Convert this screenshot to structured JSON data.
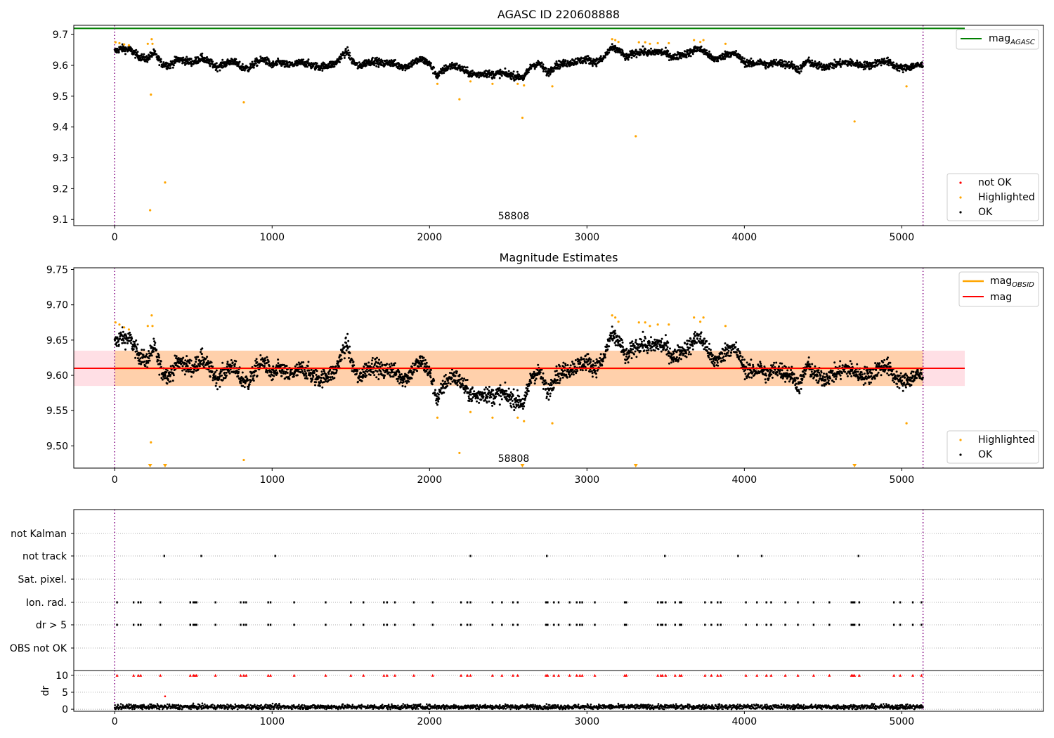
{
  "chart_data": [
    {
      "type": "scatter",
      "title": "AGASC ID 220608888",
      "xlim": [
        -260,
        5900
      ],
      "ylim": [
        9.08,
        9.73
      ],
      "x_ticks": [
        0,
        1000,
        2000,
        3000,
        4000,
        5000
      ],
      "y_ticks": [
        9.1,
        9.2,
        9.3,
        9.4,
        9.5,
        9.6,
        9.7
      ],
      "y_tick_labels": [
        "9.1",
        "9.2",
        "9.3",
        "9.4",
        "9.5",
        "9.6",
        "9.7"
      ],
      "obsid_lines_x": [
        0,
        5135
      ],
      "obsid_label": "58808",
      "hline": {
        "name": "mag",
        "subscript": "AGASC",
        "value": 9.72,
        "color": "#008000",
        "x_range": [
          -260,
          5400
        ]
      },
      "legends": {
        "top_right": [
          {
            "name": "mag",
            "subscript": "AGASC",
            "marker": "line",
            "color": "#008000"
          }
        ],
        "bottom_right": [
          {
            "name": "not OK",
            "marker": "dot",
            "color": "#ff0000"
          },
          {
            "name": "Highlighted",
            "marker": "dot",
            "color": "#ffa500"
          },
          {
            "name": "OK",
            "marker": "dot",
            "color": "#000000"
          }
        ]
      },
      "series": [
        {
          "name": "OK",
          "color": "#000000",
          "x_range": [
            0,
            5135
          ],
          "trend_x": [
            0,
            40,
            100,
            150,
            200,
            250,
            300,
            350,
            400,
            450,
            500,
            550,
            600,
            650,
            700,
            750,
            800,
            850,
            900,
            950,
            1000,
            1050,
            1100,
            1150,
            1200,
            1250,
            1300,
            1350,
            1400,
            1450,
            1480,
            1500,
            1550,
            1600,
            1650,
            1700,
            1750,
            1800,
            1850,
            1900,
            1950,
            2000,
            2050,
            2100,
            2150,
            2200,
            2250,
            2300,
            2350,
            2400,
            2450,
            2500,
            2550,
            2600,
            2650,
            2700,
            2750,
            2800,
            2850,
            2900,
            2950,
            3000,
            3050,
            3100,
            3150,
            3200,
            3250,
            3300,
            3350,
            3400,
            3450,
            3500,
            3550,
            3600,
            3650,
            3700,
            3750,
            3800,
            3850,
            3900,
            3950,
            4000,
            4050,
            4100,
            4150,
            4200,
            4250,
            4300,
            4350,
            4400,
            4450,
            4500,
            4550,
            4600,
            4650,
            4700,
            4750,
            4800,
            4850,
            4900,
            4950,
            5000,
            5050,
            5100,
            5135
          ],
          "trend_y": [
            9.645,
            9.655,
            9.65,
            9.63,
            9.62,
            9.64,
            9.605,
            9.6,
            9.62,
            9.615,
            9.61,
            9.625,
            9.61,
            9.595,
            9.605,
            9.615,
            9.595,
            9.59,
            9.61,
            9.62,
            9.6,
            9.61,
            9.6,
            9.605,
            9.61,
            9.6,
            9.595,
            9.6,
            9.605,
            9.635,
            9.645,
            9.62,
            9.595,
            9.61,
            9.615,
            9.605,
            9.61,
            9.6,
            9.595,
            9.61,
            9.62,
            9.605,
            9.565,
            9.59,
            9.6,
            9.59,
            9.575,
            9.57,
            9.575,
            9.57,
            9.575,
            9.57,
            9.565,
            9.56,
            9.6,
            9.605,
            9.575,
            9.6,
            9.605,
            9.61,
            9.615,
            9.62,
            9.61,
            9.62,
            9.655,
            9.65,
            9.625,
            9.64,
            9.645,
            9.64,
            9.645,
            9.64,
            9.625,
            9.635,
            9.64,
            9.655,
            9.645,
            9.62,
            9.625,
            9.64,
            9.635,
            9.61,
            9.605,
            9.61,
            9.6,
            9.61,
            9.605,
            9.6,
            9.585,
            9.615,
            9.6,
            9.595,
            9.6,
            9.605,
            9.61,
            9.605,
            9.6,
            9.6,
            9.61,
            9.615,
            9.6,
            9.59,
            9.595,
            9.6,
            9.6
          ],
          "noise": 0.011
        },
        {
          "name": "Highlighted",
          "color": "#ffa500",
          "points": [
            [
              5,
              9.675
            ],
            [
              30,
              9.672
            ],
            [
              60,
              9.668
            ],
            [
              90,
              9.665
            ],
            [
              210,
              9.67
            ],
            [
              225,
              9.13
            ],
            [
              230,
              9.505
            ],
            [
              235,
              9.685
            ],
            [
              240,
              9.67
            ],
            [
              320,
              9.22
            ],
            [
              820,
              9.48
            ],
            [
              2050,
              9.54
            ],
            [
              2190,
              9.49
            ],
            [
              2260,
              9.548
            ],
            [
              2400,
              9.54
            ],
            [
              2560,
              9.54
            ],
            [
              2590,
              9.43
            ],
            [
              2600,
              9.535
            ],
            [
              2780,
              9.532
            ],
            [
              3160,
              9.685
            ],
            [
              3180,
              9.682
            ],
            [
              3200,
              9.676
            ],
            [
              3310,
              9.37
            ],
            [
              3330,
              9.675
            ],
            [
              3370,
              9.675
            ],
            [
              3400,
              9.67
            ],
            [
              3450,
              9.672
            ],
            [
              3520,
              9.672
            ],
            [
              3680,
              9.682
            ],
            [
              3720,
              9.676
            ],
            [
              3740,
              9.682
            ],
            [
              3880,
              9.67
            ],
            [
              4700,
              9.418
            ],
            [
              5030,
              9.532
            ]
          ]
        },
        {
          "name": "not OK",
          "color": "#ff0000",
          "points": []
        }
      ]
    },
    {
      "type": "scatter",
      "title": "Magnitude Estimates",
      "xlim": [
        -260,
        5900
      ],
      "ylim": [
        9.4685,
        9.7525
      ],
      "x_ticks": [
        0,
        1000,
        2000,
        3000,
        4000,
        5000
      ],
      "y_ticks": [
        9.5,
        9.55,
        9.6,
        9.65,
        9.7,
        9.75
      ],
      "y_tick_labels": [
        "9.50",
        "9.55",
        "9.60",
        "9.65",
        "9.70",
        "9.75"
      ],
      "obsid_lines_x": [
        0,
        5135
      ],
      "obsid_label": "58808",
      "mag": {
        "value": 9.61,
        "color": "#ff0000",
        "x_range": [
          -260,
          5400
        ]
      },
      "mag_band": {
        "low": 9.585,
        "high": 9.635,
        "color": "#ffc0cb",
        "x_range": [
          -260,
          5400
        ]
      },
      "mag_obsid": [
        {
          "value": 9.61,
          "low": 9.585,
          "high": 9.635,
          "x_range": [
            0,
            5135
          ],
          "color": "#ffa500"
        }
      ],
      "offscale_markers_x": [
        225,
        320,
        2590,
        3310,
        4700
      ],
      "legends": {
        "top_right": [
          {
            "name": "mag",
            "subscript": "OBSID",
            "marker": "line",
            "color": "#ffa500"
          },
          {
            "name": "mag",
            "subscript": "",
            "marker": "line",
            "color": "#ff0000"
          }
        ],
        "bottom_right": [
          {
            "name": "Highlighted",
            "marker": "dot",
            "color": "#ffa500"
          },
          {
            "name": "OK",
            "marker": "dot",
            "color": "#000000"
          }
        ]
      },
      "series_ref": "same OK / Highlighted series as the first panel"
    },
    {
      "type": "scatter",
      "title": "",
      "xlim": [
        -260,
        5900
      ],
      "categories": [
        "not Kalman",
        "not track",
        "Sat. pixel.",
        "Ion. rad.",
        "dr > 5",
        "OBS not OK"
      ],
      "obsid_lines_x": [
        0,
        5135
      ],
      "flag_events": {
        "not Kalman": [],
        "not track": [
          315,
          550,
          1020,
          2260,
          2745,
          3495,
          3960,
          4110,
          4725
        ],
        "Sat. pixel.": [],
        "Ion. rad.": [
          15,
          120,
          150,
          165,
          290,
          480,
          500,
          510,
          520,
          640,
          800,
          820,
          835,
          975,
          990,
          1140,
          1340,
          1500,
          1580,
          1710,
          1730,
          1780,
          1900,
          2020,
          2200,
          2240,
          2260,
          2400,
          2460,
          2530,
          2560,
          2740,
          2750,
          2790,
          2820,
          2890,
          2935,
          2955,
          2970,
          3050,
          3240,
          3250,
          3450,
          3470,
          3480,
          3500,
          3560,
          3590,
          3600,
          3750,
          3790,
          3830,
          3850,
          4010,
          4080,
          4140,
          4170,
          4260,
          4340,
          4440,
          4540,
          4680,
          4690,
          4700,
          4730,
          4950,
          4990,
          5070,
          5125
        ],
        "dr > 5": [
          15,
          120,
          150,
          165,
          290,
          480,
          500,
          510,
          520,
          640,
          800,
          820,
          835,
          975,
          990,
          1140,
          1340,
          1500,
          1580,
          1710,
          1730,
          1780,
          1900,
          2020,
          2200,
          2240,
          2260,
          2400,
          2460,
          2530,
          2560,
          2740,
          2750,
          2790,
          2820,
          2890,
          2935,
          2955,
          2970,
          3050,
          3240,
          3250,
          3450,
          3470,
          3480,
          3500,
          3560,
          3590,
          3600,
          3750,
          3790,
          3830,
          3850,
          4010,
          4080,
          4140,
          4170,
          4260,
          4340,
          4440,
          4540,
          4680,
          4690,
          4700,
          4730,
          4950,
          4990,
          5070,
          5125
        ],
        "OBS not OK": []
      }
    },
    {
      "type": "scatter",
      "title": "",
      "xlim": [
        -260,
        5900
      ],
      "ylim": [
        -0.6,
        11.4
      ],
      "x_ticks": [
        0,
        1000,
        2000,
        3000,
        4000,
        5000
      ],
      "y_ticks": [
        0,
        5,
        10
      ],
      "ylabel": "dr",
      "obsid_lines_x": [
        0,
        5135
      ],
      "dr_base": {
        "color": "#000000",
        "x_range": [
          0,
          5135
        ],
        "mean": 0.7,
        "noise": 0.35
      },
      "dr_large": {
        "color": "#ff0000",
        "capped_at": 10,
        "marker": "triangle-up",
        "note_point": [
          320,
          3.8
        ]
      }
    }
  ]
}
